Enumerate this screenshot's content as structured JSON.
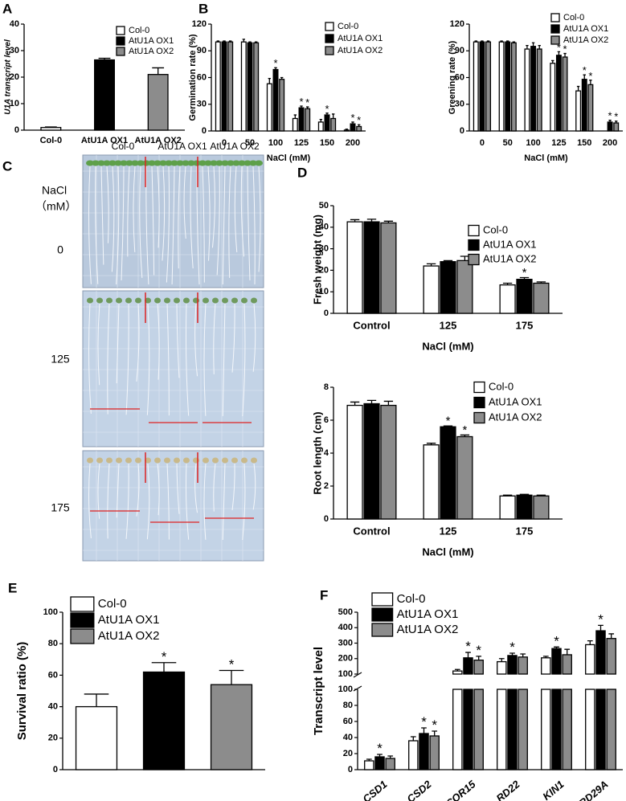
{
  "chart_data": [
    {
      "type": "bar",
      "panel": "A",
      "ylabel": "U1A transcript level",
      "categories": [
        "Col-0",
        "AtU1A OX1",
        "AtU1A OX2"
      ],
      "ylim": [
        0,
        40
      ],
      "yticks": [
        0,
        10,
        20,
        30,
        40
      ],
      "series": [
        {
          "name": "Col-0",
          "color": "#ffffff",
          "values": [
            1,
            null,
            null
          ],
          "errors": [
            0.2,
            null,
            null
          ]
        },
        {
          "name": "AtU1A OX1",
          "color": "#000000",
          "values": [
            null,
            26.5,
            null
          ],
          "errors": [
            null,
            0.6,
            null
          ]
        },
        {
          "name": "AtU1A OX2",
          "color": "#8c8c8c",
          "values": [
            null,
            null,
            21
          ],
          "errors": [
            null,
            null,
            2.5
          ]
        }
      ]
    },
    {
      "type": "bar",
      "panel": "B",
      "ylabel": "Germination rate (%)",
      "xlabel": "NaCl (mM)",
      "categories": [
        "0",
        "50",
        "100",
        "125",
        "150",
        "200"
      ],
      "ylim": [
        0,
        120
      ],
      "yticks": [
        0,
        30,
        60,
        90,
        120
      ],
      "series": [
        {
          "name": "Col-0",
          "color": "#ffffff",
          "values": [
            100,
            100,
            53,
            14,
            10,
            1
          ],
          "errors": [
            1,
            3,
            6,
            4,
            3,
            1
          ],
          "sig": [
            null,
            null,
            null,
            null,
            null,
            null
          ]
        },
        {
          "name": "AtU1A OX1",
          "color": "#000000",
          "values": [
            100,
            99,
            69,
            26,
            18,
            8
          ],
          "errors": [
            1,
            1,
            2,
            2,
            2,
            2
          ],
          "sig": [
            null,
            null,
            "*",
            "*",
            "*",
            "*"
          ]
        },
        {
          "name": "AtU1A OX2",
          "color": "#8c8c8c",
          "values": [
            100,
            99,
            58,
            25,
            14,
            5
          ],
          "errors": [
            1,
            1,
            2,
            2,
            5,
            2
          ],
          "sig": [
            null,
            null,
            null,
            "*",
            null,
            "*"
          ]
        }
      ]
    },
    {
      "type": "bar",
      "ylabel": "Greening rate (%)",
      "xlabel": "NaCl (mM)",
      "categories": [
        "0",
        "50",
        "100",
        "125",
        "150",
        "200"
      ],
      "ylim": [
        0,
        120
      ],
      "yticks": [
        0,
        30,
        60,
        90,
        120
      ],
      "series": [
        {
          "name": "Col-0",
          "color": "#ffffff",
          "values": [
            100,
            100,
            92,
            76,
            45,
            0
          ],
          "errors": [
            1,
            1,
            4,
            3,
            5,
            0
          ],
          "sig": [
            null,
            null,
            null,
            null,
            null,
            null
          ]
        },
        {
          "name": "AtU1A OX1",
          "color": "#000000",
          "values": [
            100,
            100,
            95,
            85,
            58,
            10
          ],
          "errors": [
            1,
            1,
            4,
            4,
            5,
            2
          ],
          "sig": [
            null,
            null,
            null,
            "*",
            "*",
            "*"
          ]
        },
        {
          "name": "AtU1A OX2",
          "color": "#8c8c8c",
          "values": [
            100,
            99,
            92,
            83,
            52,
            9
          ],
          "errors": [
            1,
            1,
            4,
            4,
            5,
            2
          ],
          "sig": [
            null,
            null,
            null,
            "*",
            "*",
            "*"
          ]
        }
      ]
    },
    {
      "type": "bar",
      "panel": "D",
      "ylabel": "Fresh weight (mg)",
      "xlabel": "NaCl (mM)",
      "categories": [
        "Control",
        "125",
        "175"
      ],
      "ylim": [
        0,
        50
      ],
      "yticks": [
        0,
        10,
        20,
        30,
        40,
        50
      ],
      "series": [
        {
          "name": "Col-0",
          "color": "#ffffff",
          "values": [
            42.5,
            22,
            13.2
          ],
          "errors": [
            1,
            1,
            0.8
          ],
          "sig": [
            null,
            null,
            null
          ]
        },
        {
          "name": "AtU1A OX1",
          "color": "#000000",
          "values": [
            42.5,
            24,
            15.8
          ],
          "errors": [
            1.2,
            0.5,
            0.8
          ],
          "sig": [
            null,
            null,
            "*"
          ]
        },
        {
          "name": "AtU1A OX2",
          "color": "#8c8c8c",
          "values": [
            42,
            24.5,
            14
          ],
          "errors": [
            0.8,
            2,
            0.6
          ],
          "sig": [
            null,
            null,
            null
          ]
        }
      ]
    },
    {
      "type": "bar",
      "ylabel": "Root length (cm)",
      "xlabel": "NaCl (mM)",
      "categories": [
        "Control",
        "125",
        "175"
      ],
      "ylim": [
        0,
        8
      ],
      "yticks": [
        0,
        2,
        4,
        6,
        8
      ],
      "series": [
        {
          "name": "Col-0",
          "color": "#ffffff",
          "values": [
            6.9,
            4.5,
            1.4
          ],
          "errors": [
            0.2,
            0.1,
            0.05
          ],
          "sig": [
            null,
            null,
            null
          ]
        },
        {
          "name": "AtU1A OX1",
          "color": "#000000",
          "values": [
            7.0,
            5.6,
            1.45
          ],
          "errors": [
            0.2,
            0.05,
            0.05
          ],
          "sig": [
            null,
            "*",
            null
          ]
        },
        {
          "name": "AtU1A OX2",
          "color": "#8c8c8c",
          "values": [
            6.9,
            5.0,
            1.4
          ],
          "errors": [
            0.25,
            0.1,
            0.05
          ],
          "sig": [
            null,
            "*",
            null
          ]
        }
      ]
    },
    {
      "type": "bar",
      "panel": "E",
      "ylabel": "Survival ratio (%)",
      "categories": [
        null
      ],
      "ylim": [
        0,
        100
      ],
      "yticks": [
        0,
        20,
        40,
        60,
        80,
        100
      ],
      "series": [
        {
          "name": "Col-0",
          "color": "#ffffff",
          "values": [
            40
          ],
          "errors": [
            8
          ],
          "sig": [
            null
          ]
        },
        {
          "name": "AtU1A OX1",
          "color": "#000000",
          "values": [
            62
          ],
          "errors": [
            6
          ],
          "sig": [
            "*"
          ]
        },
        {
          "name": "AtU1A OX2",
          "color": "#8c8c8c",
          "values": [
            54
          ],
          "errors": [
            9
          ],
          "sig": [
            "*"
          ]
        }
      ]
    },
    {
      "type": "bar",
      "panel": "F",
      "ylabel": "Transcript level",
      "categories": [
        "CSD1",
        "CSD2",
        "COR15",
        "RD22",
        "KIN1",
        "RD29A"
      ],
      "ylim_lower": [
        0,
        100
      ],
      "yticks_lower": [
        0,
        20,
        40,
        60,
        80,
        100
      ],
      "ylim_upper": [
        100,
        500
      ],
      "yticks_upper": [
        100,
        200,
        300,
        400,
        500
      ],
      "series": [
        {
          "name": "Col-0",
          "color": "#ffffff",
          "values": [
            11,
            36,
            120,
            180,
            205,
            290
          ],
          "errors": [
            2,
            5,
            10,
            20,
            10,
            25
          ],
          "sig": [
            null,
            null,
            null,
            null,
            null,
            null
          ]
        },
        {
          "name": "AtU1A OX1",
          "color": "#000000",
          "values": [
            16,
            45,
            205,
            220,
            265,
            380
          ],
          "errors": [
            3,
            7,
            35,
            15,
            10,
            35
          ],
          "sig": [
            "*",
            "*",
            "*",
            "*",
            "*",
            "*"
          ]
        },
        {
          "name": "AtU1A OX2",
          "color": "#8c8c8c",
          "values": [
            14,
            42,
            190,
            210,
            225,
            330
          ],
          "errors": [
            3,
            6,
            25,
            20,
            35,
            30
          ],
          "sig": [
            null,
            "*",
            "*",
            null,
            null,
            null
          ]
        }
      ]
    }
  ],
  "panel_c": {
    "letter": "C",
    "nacl_label": "NaCl",
    "unit_label": "（mM）",
    "columns": [
      "Col-0",
      "AtU1A OX1",
      "AtU1A OX2"
    ],
    "rows": [
      "0",
      "125",
      "175"
    ]
  }
}
